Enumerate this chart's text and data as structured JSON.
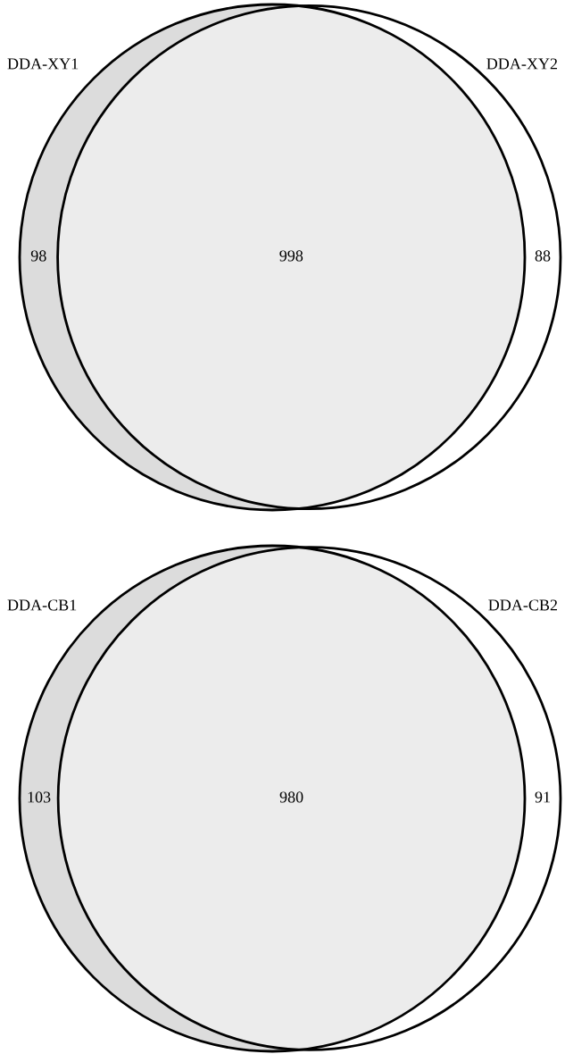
{
  "chart_data": [
    {
      "type": "other",
      "categories": [
        null,
        null,
        null
      ],
      "values": [
        98,
        998,
        88
      ],
      "data_labels": true,
      "colors": [
        "#dcdcdc",
        "#ececec",
        "#ffffff"
      ],
      "annotations": [
        "DDA-XY1",
        "DDA-XY2"
      ]
    },
    {
      "type": "other",
      "categories": [
        null,
        null,
        null
      ],
      "values": [
        103,
        980,
        91
      ],
      "data_labels": true,
      "colors": [
        "#dcdcdc",
        "#ececec",
        "#ffffff"
      ],
      "annotations": [
        "DDA-CB1",
        "DDA-CB2"
      ]
    }
  ]
}
